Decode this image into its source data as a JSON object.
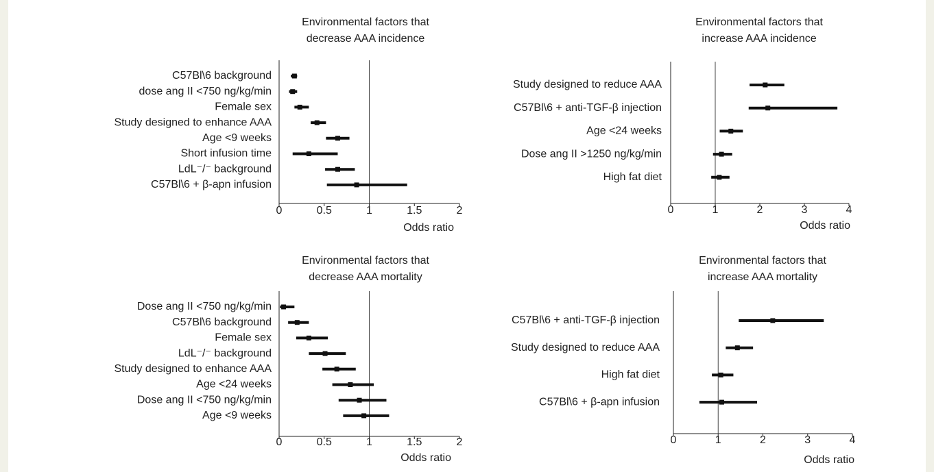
{
  "chart_data": [
    {
      "type": "forest",
      "title": [
        "Environmental factors that",
        "decrease AAA incidence"
      ],
      "xlabel": "Odds ratio",
      "categories": [
        "C57Bl\\6  background",
        "dose ang II <750 ng/kg/min",
        "Female sex",
        "Study designed to enhance AAA",
        "Age <9 weeks",
        "Short infusion time",
        "LdL⁻/⁻ background",
        "C57Bl\\6 + β-apn infusion"
      ],
      "values": [
        0.17,
        0.15,
        0.23,
        0.42,
        0.65,
        0.33,
        0.65,
        0.86
      ],
      "lower": [
        0.13,
        0.11,
        0.17,
        0.35,
        0.52,
        0.15,
        0.51,
        0.53
      ],
      "upper": [
        0.2,
        0.2,
        0.33,
        0.52,
        0.78,
        0.65,
        0.84,
        1.42
      ],
      "color": "#111111",
      "reference_line": 1,
      "xlim": [
        0,
        2
      ],
      "xticks": [
        0,
        0.5,
        1,
        1.5,
        2
      ]
    },
    {
      "type": "forest",
      "title": [
        "Environmental factors that",
        "increase AAA incidence"
      ],
      "xlabel": "Odds ratio",
      "categories": [
        "Study designed to reduce AAA",
        "C57Bl\\6 + anti-TGF-β injection",
        "Age <24 weeks",
        "Dose ang II >1250 ng/kg/min",
        "High fat diet"
      ],
      "values": [
        2.12,
        2.18,
        1.35,
        1.14,
        1.09
      ],
      "lower": [
        1.77,
        1.75,
        1.1,
        0.95,
        0.91
      ],
      "upper": [
        2.55,
        3.74,
        1.62,
        1.38,
        1.32
      ],
      "color": "#111111",
      "reference_line": 1,
      "xlim": [
        0,
        4
      ],
      "xticks": [
        0,
        1,
        2,
        3,
        4
      ]
    },
    {
      "type": "forest",
      "title": [
        "Environmental factors that",
        "decrease AAA mortality"
      ],
      "xlabel": "Odds ratio",
      "categories": [
        "Dose ang II <750 ng/kg/min",
        "C57Bl\\6  background",
        "Female sex",
        "LdL⁻/⁻ background",
        "Study designed to enhance AAA",
        "Age <24 weeks",
        "Dose ang II <750 ng/kg/min",
        "Age <9 weeks"
      ],
      "values": [
        0.05,
        0.2,
        0.33,
        0.51,
        0.64,
        0.79,
        0.89,
        0.94
      ],
      "lower": [
        0.01,
        0.1,
        0.19,
        0.33,
        0.48,
        0.59,
        0.66,
        0.71
      ],
      "upper": [
        0.17,
        0.33,
        0.54,
        0.74,
        0.85,
        1.05,
        1.19,
        1.22
      ],
      "color": "#111111",
      "reference_line": 1,
      "xlim": [
        0,
        2
      ],
      "xticks": [
        0,
        0.5,
        1,
        1.5,
        2
      ]
    },
    {
      "type": "forest",
      "title": [
        "Environmental factors that",
        "increase AAA mortality"
      ],
      "xlabel": "Odds ratio",
      "categories": [
        "C57Bl\\6 + anti-TGF-β injection",
        "Study designed to reduce AAA",
        "High fat diet",
        "C57Bl\\6 + β-apn infusion"
      ],
      "values": [
        2.22,
        1.43,
        1.06,
        1.08
      ],
      "lower": [
        1.46,
        1.17,
        0.86,
        0.58
      ],
      "upper": [
        3.36,
        1.78,
        1.34,
        1.87
      ],
      "color": "#111111",
      "reference_line": 1,
      "xlim": [
        0,
        4
      ],
      "xticks": [
        0,
        1,
        2,
        3,
        4
      ]
    }
  ]
}
